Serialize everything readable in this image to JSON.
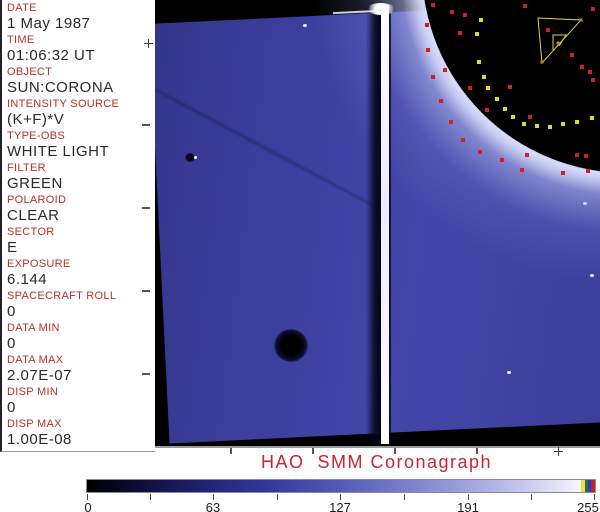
{
  "sidebar": {
    "label_color": "#b43030",
    "value_color": "#2a2a2a",
    "fields": [
      {
        "label": "DATE",
        "value": "1 May 1987"
      },
      {
        "label": "TIME",
        "value": "01:06:32 UT"
      },
      {
        "label": "OBJECT",
        "value": "SUN:CORONA"
      },
      {
        "label": "INTENSITY SOURCE",
        "value": "(K+F)*V"
      },
      {
        "label": "TYPE-OBS",
        "value": "WHITE LIGHT"
      },
      {
        "label": "FILTER",
        "value": "GREEN"
      },
      {
        "label": "POLAROID",
        "value": "CLEAR"
      },
      {
        "label": "SECTOR",
        "value": "E"
      },
      {
        "label": "EXPOSURE",
        "value": "6.144"
      },
      {
        "label": "SPACECRAFT ROLL",
        "value": "0"
      },
      {
        "label": "DATA MIN",
        "value": "0"
      },
      {
        "label": "DATA MAX",
        "value": "2.07E-07"
      },
      {
        "label": "DISP MIN",
        "value": "0"
      },
      {
        "label": "DISP MAX",
        "value": "1.00E-08"
      }
    ]
  },
  "footer": {
    "title": "HAO  SMM Coronagraph",
    "title_color": "#cc2233"
  },
  "colorbar": {
    "tick_labels": [
      "0",
      "63",
      "127",
      "191",
      "255"
    ],
    "range": [
      0,
      255
    ],
    "stripe_colors": {
      "yellow": "#e8e23a",
      "green": "#2d7040",
      "blue": "#2636d8",
      "red": "#c62222"
    }
  },
  "image_overlay": {
    "dot_colors": {
      "red": "#cc2222",
      "yellow": "#e0d92a",
      "orange": "#e07818"
    },
    "red_dots": [
      [
        433,
        5
      ],
      [
        452,
        12
      ],
      [
        465,
        15
      ],
      [
        525,
        6
      ],
      [
        593,
        9
      ],
      [
        460,
        33
      ],
      [
        548,
        30
      ],
      [
        572,
        55
      ],
      [
        582,
        67
      ],
      [
        445,
        70
      ],
      [
        470,
        88
      ],
      [
        510,
        87
      ],
      [
        590,
        72
      ],
      [
        593,
        80
      ],
      [
        487,
        110
      ],
      [
        530,
        117
      ],
      [
        480,
        152
      ],
      [
        502,
        160
      ],
      [
        527,
        155
      ],
      [
        577,
        155
      ],
      [
        586,
        156
      ],
      [
        427,
        25
      ],
      [
        428,
        50
      ],
      [
        433,
        77
      ],
      [
        441,
        101
      ],
      [
        451,
        122
      ],
      [
        463,
        140
      ],
      [
        522,
        170
      ],
      [
        563,
        173
      ],
      [
        588,
        171
      ]
    ],
    "yellow_dots": [
      [
        481,
        20
      ],
      [
        477,
        34
      ],
      [
        479,
        62
      ],
      [
        484,
        77
      ],
      [
        488,
        88
      ],
      [
        497,
        99
      ],
      [
        505,
        109
      ],
      [
        513,
        117
      ],
      [
        524,
        124
      ],
      [
        537,
        126
      ],
      [
        550,
        127
      ],
      [
        563,
        124
      ],
      [
        577,
        122
      ],
      [
        592,
        118
      ]
    ],
    "polygon_outer": [
      [
        538,
        18
      ],
      [
        581,
        20
      ],
      [
        542,
        63
      ]
    ],
    "polygon_inner": [
      [
        553,
        50
      ],
      [
        553,
        35
      ],
      [
        566,
        35
      ],
      [
        559,
        46
      ]
    ],
    "orange_dots": [
      [
        581,
        20
      ],
      [
        542,
        62
      ],
      [
        558,
        43
      ]
    ],
    "polygon_color": "#d8d832"
  }
}
